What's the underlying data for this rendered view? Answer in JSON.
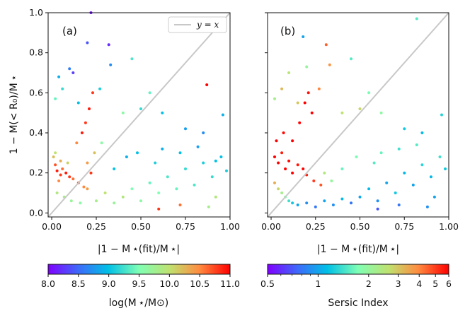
{
  "chart_data": [
    {
      "type": "scatter",
      "panel_label": "(a)",
      "xlabel": "|1 − M ⋆(fit)/M ⋆|",
      "ylabel": "1 − M(< R₀)/M ⋆",
      "xlim": [
        -0.02,
        1.0
      ],
      "ylim": [
        -0.02,
        1.0
      ],
      "xticks": [
        "0.00",
        "0.25",
        "0.50",
        "0.75",
        "1.00"
      ],
      "yticks": [
        "0.0",
        "0.2",
        "0.4",
        "0.6",
        "0.8",
        "1.0"
      ],
      "legend": {
        "label": "y = x",
        "position": "top-right"
      },
      "reference_line": {
        "name": "y = x",
        "color": "#c8c8c8"
      },
      "colorbar": {
        "label": "log(M ⋆/M⊙)",
        "range": [
          8.0,
          11.0
        ],
        "scale": "linear",
        "ticks": [
          "8.0",
          "8.5",
          "9.0",
          "9.5",
          "10.0",
          "10.5",
          "11.0"
        ],
        "colormap": "rainbow"
      },
      "points": [
        {
          "x": 0.02,
          "y": 0.24,
          "c": 10.7
        },
        {
          "x": 0.03,
          "y": 0.21,
          "c": 10.9
        },
        {
          "x": 0.05,
          "y": 0.19,
          "c": 10.8
        },
        {
          "x": 0.04,
          "y": 0.16,
          "c": 10.5
        },
        {
          "x": 0.06,
          "y": 0.22,
          "c": 10.6
        },
        {
          "x": 0.08,
          "y": 0.2,
          "c": 10.9
        },
        {
          "x": 0.1,
          "y": 0.18,
          "c": 10.8
        },
        {
          "x": 0.12,
          "y": 0.17,
          "c": 10.6
        },
        {
          "x": 0.15,
          "y": 0.15,
          "c": 10.7
        },
        {
          "x": 0.18,
          "y": 0.13,
          "c": 10.5
        },
        {
          "x": 0.2,
          "y": 0.12,
          "c": 10.4
        },
        {
          "x": 0.22,
          "y": 0.2,
          "c": 10.8
        },
        {
          "x": 0.01,
          "y": 0.28,
          "c": 10.2
        },
        {
          "x": 0.02,
          "y": 0.3,
          "c": 10.0
        },
        {
          "x": 0.05,
          "y": 0.26,
          "c": 10.3
        },
        {
          "x": 0.09,
          "y": 0.25,
          "c": 10.1
        },
        {
          "x": 0.03,
          "y": 0.1,
          "c": 9.9
        },
        {
          "x": 0.07,
          "y": 0.08,
          "c": 9.8
        },
        {
          "x": 0.11,
          "y": 0.06,
          "c": 9.7
        },
        {
          "x": 0.16,
          "y": 0.05,
          "c": 9.6
        },
        {
          "x": 0.25,
          "y": 0.06,
          "c": 9.8
        },
        {
          "x": 0.3,
          "y": 0.1,
          "c": 10.0
        },
        {
          "x": 0.35,
          "y": 0.05,
          "c": 9.7
        },
        {
          "x": 0.4,
          "y": 0.08,
          "c": 9.9
        },
        {
          "x": 0.45,
          "y": 0.12,
          "c": 9.5
        },
        {
          "x": 0.5,
          "y": 0.06,
          "c": 9.6
        },
        {
          "x": 0.55,
          "y": 0.15,
          "c": 9.4
        },
        {
          "x": 0.6,
          "y": 0.1,
          "c": 9.5
        },
        {
          "x": 0.65,
          "y": 0.18,
          "c": 9.3
        },
        {
          "x": 0.7,
          "y": 0.12,
          "c": 9.4
        },
        {
          "x": 0.75,
          "y": 0.22,
          "c": 9.2
        },
        {
          "x": 0.8,
          "y": 0.14,
          "c": 9.3
        },
        {
          "x": 0.85,
          "y": 0.25,
          "c": 9.1
        },
        {
          "x": 0.9,
          "y": 0.18,
          "c": 9.2
        },
        {
          "x": 0.95,
          "y": 0.28,
          "c": 9.0
        },
        {
          "x": 0.98,
          "y": 0.21,
          "c": 9.1
        },
        {
          "x": 0.35,
          "y": 0.22,
          "c": 9.0
        },
        {
          "x": 0.42,
          "y": 0.28,
          "c": 8.9
        },
        {
          "x": 0.48,
          "y": 0.3,
          "c": 9.0
        },
        {
          "x": 0.58,
          "y": 0.25,
          "c": 9.1
        },
        {
          "x": 0.62,
          "y": 0.32,
          "c": 8.9
        },
        {
          "x": 0.72,
          "y": 0.3,
          "c": 9.0
        },
        {
          "x": 0.82,
          "y": 0.33,
          "c": 8.8
        },
        {
          "x": 0.92,
          "y": 0.26,
          "c": 9.0
        },
        {
          "x": 0.2,
          "y": 0.25,
          "c": 10.4
        },
        {
          "x": 0.24,
          "y": 0.3,
          "c": 10.2
        },
        {
          "x": 0.28,
          "y": 0.35,
          "c": 9.6
        },
        {
          "x": 0.17,
          "y": 0.4,
          "c": 10.9
        },
        {
          "x": 0.19,
          "y": 0.45,
          "c": 10.8
        },
        {
          "x": 0.21,
          "y": 0.52,
          "c": 10.9
        },
        {
          "x": 0.23,
          "y": 0.6,
          "c": 10.8
        },
        {
          "x": 0.14,
          "y": 0.35,
          "c": 10.5
        },
        {
          "x": 0.06,
          "y": 0.62,
          "c": 9.2
        },
        {
          "x": 0.04,
          "y": 0.68,
          "c": 8.9
        },
        {
          "x": 0.1,
          "y": 0.72,
          "c": 8.6
        },
        {
          "x": 0.12,
          "y": 0.7,
          "c": 8.3
        },
        {
          "x": 0.2,
          "y": 0.85,
          "c": 8.4
        },
        {
          "x": 0.32,
          "y": 0.84,
          "c": 8.2
        },
        {
          "x": 0.45,
          "y": 0.77,
          "c": 9.3
        },
        {
          "x": 0.33,
          "y": 0.74,
          "c": 8.7
        },
        {
          "x": 0.22,
          "y": 1.0,
          "c": 8.1
        },
        {
          "x": 0.02,
          "y": 0.57,
          "c": 9.4
        },
        {
          "x": 0.15,
          "y": 0.55,
          "c": 9.0
        },
        {
          "x": 0.27,
          "y": 0.62,
          "c": 9.1
        },
        {
          "x": 0.5,
          "y": 0.52,
          "c": 9.2
        },
        {
          "x": 0.62,
          "y": 0.5,
          "c": 9.0
        },
        {
          "x": 0.55,
          "y": 0.6,
          "c": 9.4
        },
        {
          "x": 0.4,
          "y": 0.5,
          "c": 9.6
        },
        {
          "x": 0.75,
          "y": 0.42,
          "c": 8.8
        },
        {
          "x": 0.85,
          "y": 0.4,
          "c": 8.7
        },
        {
          "x": 0.87,
          "y": 0.64,
          "c": 11.0
        },
        {
          "x": 0.96,
          "y": 0.49,
          "c": 8.9
        },
        {
          "x": 0.6,
          "y": 0.02,
          "c": 10.8
        },
        {
          "x": 0.72,
          "y": 0.04,
          "c": 10.6
        },
        {
          "x": 0.88,
          "y": 0.03,
          "c": 9.8
        },
        {
          "x": 0.92,
          "y": 0.08,
          "c": 9.9
        }
      ]
    },
    {
      "type": "scatter",
      "panel_label": "(b)",
      "xlabel": "|1 − M ⋆(fit)/M ⋆|",
      "ylabel": "",
      "xlim": [
        -0.02,
        1.0
      ],
      "ylim": [
        -0.02,
        1.0
      ],
      "xticks": [
        "0.00",
        "0.25",
        "0.50",
        "0.75",
        "1.00"
      ],
      "yticks": [
        "",
        "",
        "",
        "",
        "",
        ""
      ],
      "reference_line": {
        "name": "y = x",
        "color": "#c8c8c8"
      },
      "colorbar": {
        "label": "Sersic Index",
        "range": [
          0.5,
          6
        ],
        "scale": "log",
        "ticks": [
          "0.5",
          "1",
          "2",
          "3",
          "4",
          "5",
          "6"
        ],
        "colormap": "rainbow"
      },
      "points": [
        {
          "x": 0.02,
          "y": 0.28,
          "c": 6.0
        },
        {
          "x": 0.04,
          "y": 0.25,
          "c": 6.0
        },
        {
          "x": 0.06,
          "y": 0.3,
          "c": 5.5
        },
        {
          "x": 0.08,
          "y": 0.22,
          "c": 6.0
        },
        {
          "x": 0.1,
          "y": 0.26,
          "c": 5.8
        },
        {
          "x": 0.12,
          "y": 0.2,
          "c": 6.0
        },
        {
          "x": 0.15,
          "y": 0.24,
          "c": 5.6
        },
        {
          "x": 0.18,
          "y": 0.22,
          "c": 6.0
        },
        {
          "x": 0.2,
          "y": 0.19,
          "c": 5.5
        },
        {
          "x": 0.24,
          "y": 0.16,
          "c": 5.0
        },
        {
          "x": 0.28,
          "y": 0.14,
          "c": 4.6
        },
        {
          "x": 0.03,
          "y": 0.36,
          "c": 6.0
        },
        {
          "x": 0.07,
          "y": 0.4,
          "c": 5.8
        },
        {
          "x": 0.12,
          "y": 0.36,
          "c": 6.0
        },
        {
          "x": 0.16,
          "y": 0.45,
          "c": 6.0
        },
        {
          "x": 0.19,
          "y": 0.55,
          "c": 6.0
        },
        {
          "x": 0.21,
          "y": 0.6,
          "c": 5.7
        },
        {
          "x": 0.23,
          "y": 0.5,
          "c": 6.0
        },
        {
          "x": 0.02,
          "y": 0.15,
          "c": 3.4
        },
        {
          "x": 0.04,
          "y": 0.12,
          "c": 2.8
        },
        {
          "x": 0.06,
          "y": 0.1,
          "c": 2.2
        },
        {
          "x": 0.08,
          "y": 0.08,
          "c": 1.8
        },
        {
          "x": 0.1,
          "y": 0.06,
          "c": 1.4
        },
        {
          "x": 0.12,
          "y": 0.05,
          "c": 1.2
        },
        {
          "x": 0.15,
          "y": 0.04,
          "c": 1.0
        },
        {
          "x": 0.2,
          "y": 0.05,
          "c": 0.9
        },
        {
          "x": 0.25,
          "y": 0.03,
          "c": 0.8
        },
        {
          "x": 0.3,
          "y": 0.06,
          "c": 1.0
        },
        {
          "x": 0.35,
          "y": 0.04,
          "c": 0.9
        },
        {
          "x": 0.4,
          "y": 0.07,
          "c": 1.1
        },
        {
          "x": 0.45,
          "y": 0.05,
          "c": 0.8
        },
        {
          "x": 0.5,
          "y": 0.08,
          "c": 1.0
        },
        {
          "x": 0.55,
          "y": 0.12,
          "c": 1.1
        },
        {
          "x": 0.6,
          "y": 0.06,
          "c": 0.9
        },
        {
          "x": 0.65,
          "y": 0.15,
          "c": 1.0
        },
        {
          "x": 0.7,
          "y": 0.1,
          "c": 1.2
        },
        {
          "x": 0.75,
          "y": 0.2,
          "c": 1.1
        },
        {
          "x": 0.8,
          "y": 0.14,
          "c": 1.0
        },
        {
          "x": 0.85,
          "y": 0.24,
          "c": 1.3
        },
        {
          "x": 0.9,
          "y": 0.18,
          "c": 1.1
        },
        {
          "x": 0.95,
          "y": 0.28,
          "c": 1.4
        },
        {
          "x": 0.98,
          "y": 0.22,
          "c": 1.2
        },
        {
          "x": 0.4,
          "y": 0.22,
          "c": 1.6
        },
        {
          "x": 0.48,
          "y": 0.28,
          "c": 1.7
        },
        {
          "x": 0.58,
          "y": 0.25,
          "c": 1.5
        },
        {
          "x": 0.62,
          "y": 0.3,
          "c": 1.6
        },
        {
          "x": 0.72,
          "y": 0.32,
          "c": 1.4
        },
        {
          "x": 0.82,
          "y": 0.34,
          "c": 1.5
        },
        {
          "x": 0.3,
          "y": 0.2,
          "c": 2.4
        },
        {
          "x": 0.34,
          "y": 0.16,
          "c": 2.0
        },
        {
          "x": 0.06,
          "y": 0.62,
          "c": 3.2
        },
        {
          "x": 0.1,
          "y": 0.7,
          "c": 2.5
        },
        {
          "x": 0.2,
          "y": 0.73,
          "c": 2.0
        },
        {
          "x": 0.31,
          "y": 0.84,
          "c": 4.5
        },
        {
          "x": 0.45,
          "y": 0.77,
          "c": 1.5
        },
        {
          "x": 0.33,
          "y": 0.74,
          "c": 3.8
        },
        {
          "x": 0.18,
          "y": 0.88,
          "c": 1.0
        },
        {
          "x": 0.02,
          "y": 0.57,
          "c": 2.2
        },
        {
          "x": 0.15,
          "y": 0.55,
          "c": 3.0
        },
        {
          "x": 0.27,
          "y": 0.62,
          "c": 4.0
        },
        {
          "x": 0.5,
          "y": 0.52,
          "c": 2.8
        },
        {
          "x": 0.62,
          "y": 0.5,
          "c": 1.9
        },
        {
          "x": 0.55,
          "y": 0.6,
          "c": 1.7
        },
        {
          "x": 0.4,
          "y": 0.5,
          "c": 2.6
        },
        {
          "x": 0.75,
          "y": 0.42,
          "c": 1.2
        },
        {
          "x": 0.85,
          "y": 0.4,
          "c": 1.1
        },
        {
          "x": 0.82,
          "y": 0.97,
          "c": 1.5
        },
        {
          "x": 0.96,
          "y": 0.49,
          "c": 1.3
        },
        {
          "x": 0.6,
          "y": 0.02,
          "c": 0.7
        },
        {
          "x": 0.72,
          "y": 0.04,
          "c": 0.8
        },
        {
          "x": 0.88,
          "y": 0.03,
          "c": 0.9
        },
        {
          "x": 0.92,
          "y": 0.08,
          "c": 1.0
        }
      ]
    }
  ]
}
